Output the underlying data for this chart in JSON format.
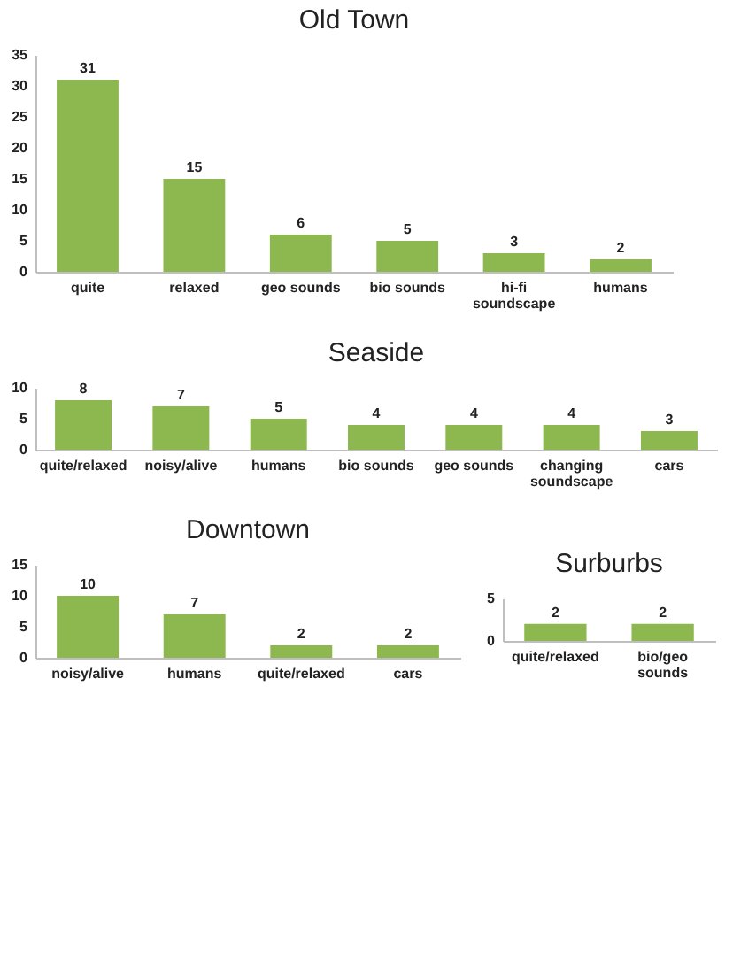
{
  "chart_data": [
    {
      "type": "bar",
      "title": "Old Town",
      "categories": [
        "quite",
        "relaxed",
        "geo sounds",
        "bio sounds",
        "hi-fi soundscape",
        "humans"
      ],
      "values": [
        31,
        15,
        6,
        5,
        3,
        2
      ],
      "color": "#8db84f",
      "ylim": [
        0,
        35
      ],
      "yticks": [
        0,
        5,
        10,
        15,
        20,
        25,
        30,
        35
      ],
      "data_labels": true,
      "grid": false
    },
    {
      "type": "bar",
      "title": "Seaside",
      "categories": [
        "quite/relaxed",
        "noisy/alive",
        "humans",
        "bio sounds",
        "geo sounds",
        "changing soundscape",
        "cars"
      ],
      "values": [
        8,
        7,
        5,
        4,
        4,
        4,
        3
      ],
      "color": "#8db84f",
      "ylim": [
        0,
        10
      ],
      "yticks": [
        0,
        5,
        10
      ],
      "data_labels": true,
      "grid": false
    },
    {
      "type": "bar",
      "title": "Downtown",
      "categories": [
        "noisy/alive",
        "humans",
        "quite/relaxed",
        "cars"
      ],
      "values": [
        10,
        7,
        2,
        2
      ],
      "color": "#8db84f",
      "ylim": [
        0,
        15
      ],
      "yticks": [
        0,
        5,
        10,
        15
      ],
      "data_labels": true,
      "grid": false
    },
    {
      "type": "bar",
      "title": "Surburbs",
      "categories": [
        "quite/relaxed",
        "bio/geo sounds"
      ],
      "values": [
        2,
        2
      ],
      "color": "#8db84f",
      "ylim": [
        0,
        5
      ],
      "yticks": [
        0,
        5
      ],
      "data_labels": true,
      "grid": false
    }
  ]
}
